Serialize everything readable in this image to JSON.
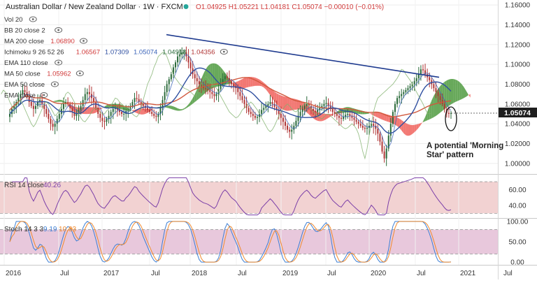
{
  "header": {
    "symbol_title": "Australian Dollar / New Zealand Dollar · 1W · FXCM",
    "ohlc": "O1.04925 H1.05221 L1.04181 C1.05074 −0.00010 (−0.01%)"
  },
  "indicators": [
    {
      "label": "Vol 20",
      "values": []
    },
    {
      "label": "BB 20 close 2",
      "values": []
    },
    {
      "label": "MA 200 close",
      "values": [
        "1.06890"
      ]
    },
    {
      "label": "Ichimoku 9 26 52 26",
      "values": [
        "1.06567",
        "1.07309",
        "1.05074",
        "1.04918",
        "1.04356"
      ]
    },
    {
      "label": "EMA 110 close",
      "values": []
    },
    {
      "label": "MA 50 close",
      "values": [
        "1.05962"
      ]
    },
    {
      "label": "EMA 50 close",
      "values": []
    },
    {
      "label": "EMA close",
      "values": []
    }
  ],
  "annotation": {
    "line1": "A potential 'Morning",
    "line2": "Star' pattern"
  },
  "last_price": "1.05074",
  "rsi_panel": {
    "label": "RSI 14 close",
    "value": "40.26"
  },
  "stoch_panel": {
    "label": "Stoch 14 3 3",
    "k": "9.19",
    "d": "10.33"
  },
  "colors": {
    "bull": "#2a6a3a",
    "bear": "#b03535",
    "cloud_green": "#4e9a3e",
    "cloud_red": "#f0605a",
    "ma200": "#d1583d",
    "ma50": "#2f4fa0",
    "tenkan": "#3a63b8",
    "trendline": "#1f3b8f",
    "rsi": "#7b3fa8",
    "stoch_k": "#3d7fd4",
    "stoch_d": "#f08a2e",
    "rsi_band": "#f2d2d2",
    "stoch_band": "#e8c8dc"
  },
  "chart_data": {
    "type": "candlestick",
    "price_axis": {
      "ticks": [
        1.16,
        1.14,
        1.12,
        1.1,
        1.08,
        1.06,
        1.04,
        1.02,
        1.0
      ],
      "range": [
        0.99,
        1.165
      ]
    },
    "rsi_axis": {
      "ticks": [
        60.0,
        40.0
      ],
      "band": [
        30,
        70
      ],
      "range": [
        25,
        78
      ]
    },
    "stoch_axis": {
      "ticks": [
        100.0,
        50.0,
        0.0
      ],
      "band": [
        20,
        80
      ],
      "range": [
        -5,
        105
      ]
    },
    "time_axis": {
      "labels": [
        "2016",
        "Jul",
        "2017",
        "Jul",
        "2018",
        "Jul",
        "2019",
        "Jul",
        "2020",
        "Jul",
        "2021",
        "Jul"
      ]
    },
    "trendline": {
      "from": [
        "2017-10",
        1.13
      ],
      "to": [
        "2020-10",
        1.087
      ]
    },
    "weekly_close": [
      1.05,
      1.055,
      1.058,
      1.062,
      1.066,
      1.07,
      1.074,
      1.072,
      1.068,
      1.062,
      1.058,
      1.055,
      1.058,
      1.062,
      1.064,
      1.06,
      1.055,
      1.05,
      1.045,
      1.04,
      1.037,
      1.04,
      1.045,
      1.05,
      1.055,
      1.06,
      1.062,
      1.06,
      1.056,
      1.052,
      1.048,
      1.05,
      1.054,
      1.058,
      1.064,
      1.07,
      1.072,
      1.07,
      1.066,
      1.062,
      1.056,
      1.05,
      1.046,
      1.043,
      1.042,
      1.045,
      1.048,
      1.052,
      1.055,
      1.056,
      1.054,
      1.052,
      1.05,
      1.05,
      1.053,
      1.055,
      1.058,
      1.062,
      1.066,
      1.065,
      1.062,
      1.06,
      1.058,
      1.056,
      1.054,
      1.052,
      1.05,
      1.048,
      1.047,
      1.05,
      1.056,
      1.064,
      1.072,
      1.08,
      1.085,
      1.09,
      1.097,
      1.102,
      1.108,
      1.11,
      1.112,
      1.112,
      1.108,
      1.102,
      1.096,
      1.09,
      1.086,
      1.083,
      1.08,
      1.078,
      1.076,
      1.075,
      1.074,
      1.072,
      1.07,
      1.068,
      1.07,
      1.075,
      1.08,
      1.085,
      1.088,
      1.086,
      1.083,
      1.08,
      1.078,
      1.076,
      1.072,
      1.068,
      1.064,
      1.06,
      1.056,
      1.052,
      1.05,
      1.048,
      1.046,
      1.047,
      1.05,
      1.054,
      1.056,
      1.058,
      1.06,
      1.062,
      1.06,
      1.057,
      1.054,
      1.05,
      1.046,
      1.042,
      1.038,
      1.034,
      1.032,
      1.034,
      1.038,
      1.043,
      1.048,
      1.052,
      1.055,
      1.058,
      1.06,
      1.058,
      1.055,
      1.053,
      1.052,
      1.054,
      1.056,
      1.058,
      1.06,
      1.061,
      1.058,
      1.055,
      1.052,
      1.05,
      1.048,
      1.046,
      1.045,
      1.047,
      1.049,
      1.05,
      1.048,
      1.046,
      1.044,
      1.042,
      1.04,
      1.038,
      1.036,
      1.035,
      1.036,
      1.038,
      1.04,
      1.038,
      1.035,
      1.03,
      1.022,
      1.012,
      1.005,
      1.015,
      1.028,
      1.04,
      1.052,
      1.06,
      1.066,
      1.068,
      1.07,
      1.072,
      1.074,
      1.076,
      1.078,
      1.08,
      1.083,
      1.086,
      1.09,
      1.095,
      1.094,
      1.09,
      1.087,
      1.084,
      1.08,
      1.076,
      1.072,
      1.068,
      1.064,
      1.06,
      1.055,
      1.051,
      1.05,
      1.0507
    ]
  }
}
